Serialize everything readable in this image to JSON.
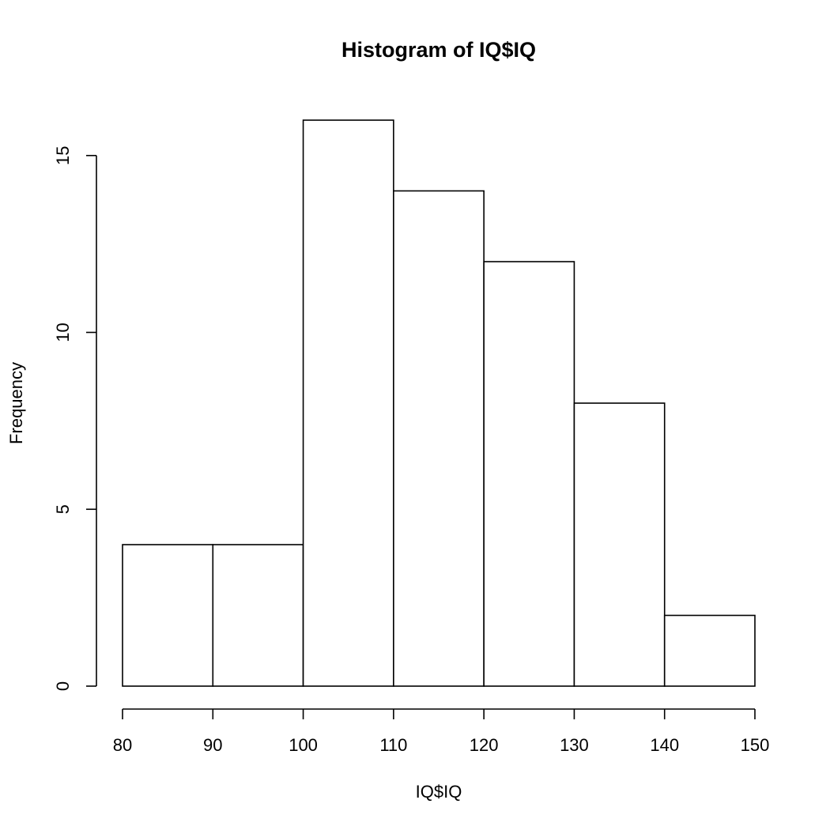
{
  "chart_data": {
    "type": "bar",
    "title": "Histogram of IQ$IQ",
    "xlabel": "IQ$IQ",
    "ylabel": "Frequency",
    "bins": [
      {
        "from": 80,
        "to": 90,
        "count": 4
      },
      {
        "from": 90,
        "to": 100,
        "count": 4
      },
      {
        "from": 100,
        "to": 110,
        "count": 16
      },
      {
        "from": 110,
        "to": 120,
        "count": 14
      },
      {
        "from": 120,
        "to": 130,
        "count": 12
      },
      {
        "from": 130,
        "to": 140,
        "count": 8
      },
      {
        "from": 140,
        "to": 150,
        "count": 2
      }
    ],
    "xticks": [
      "80",
      "90",
      "100",
      "110",
      "120",
      "130",
      "140",
      "150"
    ],
    "yticks": [
      "0",
      "5",
      "10",
      "15"
    ],
    "xlim": [
      80,
      150
    ],
    "ylim": [
      0,
      16
    ],
    "grid": false,
    "legend": "none"
  }
}
